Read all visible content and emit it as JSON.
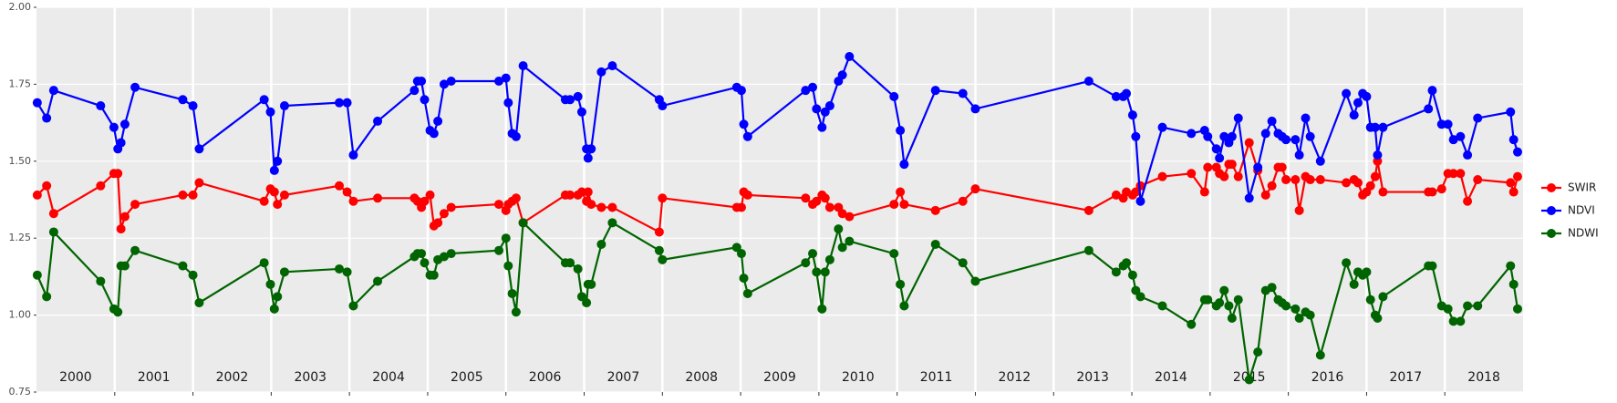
{
  "chart_data": {
    "type": "line",
    "x": [
      2000.01,
      2000.13,
      2000.22,
      2000.82,
      2000.99,
      2001.04,
      2001.08,
      2001.13,
      2001.26,
      2001.87,
      2002.0,
      2002.08,
      2002.91,
      2002.99,
      2003.04,
      2003.08,
      2003.17,
      2003.87,
      2003.97,
      2004.05,
      2004.36,
      2004.83,
      2004.87,
      2004.92,
      2004.96,
      2005.03,
      2005.08,
      2005.13,
      2005.21,
      2005.3,
      2005.91,
      2006.0,
      2006.03,
      2006.08,
      2006.13,
      2006.22,
      2006.76,
      2006.82,
      2006.92,
      2006.97,
      2007.03,
      2007.05,
      2007.09,
      2007.22,
      2007.36,
      2007.96,
      2008.0,
      2008.95,
      2009.01,
      2009.04,
      2009.09,
      2009.83,
      2009.92,
      2009.97,
      2010.04,
      2010.08,
      2010.14,
      2010.25,
      2010.3,
      2010.39,
      2010.96,
      2011.04,
      2011.09,
      2011.49,
      2011.84,
      2012.0,
      2013.45,
      2013.8,
      2013.89,
      2013.93,
      2014.01,
      2014.05,
      2014.11,
      2014.39,
      2014.76,
      2014.93,
      2014.97,
      2015.08,
      2015.12,
      2015.18,
      2015.24,
      2015.28,
      2015.36,
      2015.5,
      2015.61,
      2015.71,
      2015.79,
      2015.87,
      2015.92,
      2015.97,
      2016.09,
      2016.14,
      2016.22,
      2016.28,
      2016.41,
      2016.74,
      2016.84,
      2016.89,
      2016.95,
      2017.0,
      2017.05,
      2017.11,
      2017.14,
      2017.21,
      2017.79,
      2017.84,
      2017.96,
      2018.04,
      2018.11,
      2018.2,
      2018.29,
      2018.42,
      2018.84,
      2018.88,
      2018.93
    ],
    "series": [
      {
        "name": "SWIR",
        "color": "#ff0000",
        "values": [
          1.39,
          1.42,
          1.33,
          1.42,
          1.46,
          1.46,
          1.28,
          1.32,
          1.36,
          1.39,
          1.39,
          1.43,
          1.37,
          1.41,
          1.4,
          1.36,
          1.39,
          1.42,
          1.4,
          1.37,
          1.38,
          1.38,
          1.37,
          1.35,
          1.37,
          1.39,
          1.29,
          1.3,
          1.33,
          1.35,
          1.36,
          1.34,
          1.36,
          1.37,
          1.38,
          1.3,
          1.39,
          1.39,
          1.39,
          1.4,
          1.37,
          1.4,
          1.36,
          1.35,
          1.35,
          1.27,
          1.38,
          1.35,
          1.35,
          1.4,
          1.39,
          1.38,
          1.36,
          1.37,
          1.39,
          1.38,
          1.35,
          1.35,
          1.33,
          1.32,
          1.36,
          1.4,
          1.36,
          1.34,
          1.37,
          1.41,
          1.34,
          1.39,
          1.38,
          1.4,
          1.39,
          1.4,
          1.42,
          1.45,
          1.46,
          1.4,
          1.48,
          1.48,
          1.46,
          1.45,
          1.49,
          1.49,
          1.45,
          1.56,
          1.47,
          1.39,
          1.42,
          1.48,
          1.48,
          1.44,
          1.44,
          1.34,
          1.45,
          1.44,
          1.44,
          1.43,
          1.44,
          1.43,
          1.39,
          1.4,
          1.42,
          1.45,
          1.5,
          1.4,
          1.4,
          1.4,
          1.41,
          1.46,
          1.46,
          1.46,
          1.37,
          1.44,
          1.43,
          1.4,
          1.45
        ]
      },
      {
        "name": "NDVI",
        "color": "#0000ff",
        "values": [
          1.69,
          1.64,
          1.73,
          1.68,
          1.61,
          1.54,
          1.56,
          1.62,
          1.74,
          1.7,
          1.68,
          1.54,
          1.7,
          1.66,
          1.47,
          1.5,
          1.68,
          1.69,
          1.69,
          1.52,
          1.63,
          1.73,
          1.76,
          1.76,
          1.7,
          1.6,
          1.59,
          1.63,
          1.75,
          1.76,
          1.76,
          1.77,
          1.69,
          1.59,
          1.58,
          1.81,
          1.7,
          1.7,
          1.71,
          1.66,
          1.54,
          1.51,
          1.54,
          1.79,
          1.81,
          1.7,
          1.68,
          1.74,
          1.73,
          1.62,
          1.58,
          1.73,
          1.74,
          1.67,
          1.61,
          1.66,
          1.68,
          1.76,
          1.78,
          1.84,
          1.71,
          1.6,
          1.49,
          1.73,
          1.72,
          1.67,
          1.76,
          1.71,
          1.71,
          1.72,
          1.65,
          1.58,
          1.37,
          1.61,
          1.59,
          1.6,
          1.58,
          1.54,
          1.51,
          1.58,
          1.56,
          1.58,
          1.64,
          1.38,
          1.48,
          1.59,
          1.63,
          1.59,
          1.58,
          1.57,
          1.57,
          1.52,
          1.64,
          1.58,
          1.5,
          1.72,
          1.65,
          1.69,
          1.72,
          1.71,
          1.61,
          1.61,
          1.52,
          1.61,
          1.67,
          1.73,
          1.62,
          1.62,
          1.57,
          1.58,
          1.52,
          1.64,
          1.66,
          1.57,
          1.53
        ]
      },
      {
        "name": "NDWI",
        "color": "#006400",
        "values": [
          1.13,
          1.06,
          1.27,
          1.11,
          1.02,
          1.01,
          1.16,
          1.16,
          1.21,
          1.16,
          1.13,
          1.04,
          1.17,
          1.1,
          1.02,
          1.06,
          1.14,
          1.15,
          1.14,
          1.03,
          1.11,
          1.19,
          1.2,
          1.2,
          1.17,
          1.13,
          1.13,
          1.18,
          1.19,
          1.2,
          1.21,
          1.25,
          1.16,
          1.07,
          1.01,
          1.3,
          1.17,
          1.17,
          1.15,
          1.06,
          1.04,
          1.1,
          1.1,
          1.23,
          1.3,
          1.21,
          1.18,
          1.22,
          1.2,
          1.12,
          1.07,
          1.17,
          1.2,
          1.14,
          1.02,
          1.14,
          1.18,
          1.28,
          1.22,
          1.24,
          1.2,
          1.1,
          1.03,
          1.23,
          1.17,
          1.11,
          1.21,
          1.14,
          1.16,
          1.17,
          1.13,
          1.08,
          1.06,
          1.03,
          0.97,
          1.05,
          1.05,
          1.03,
          1.04,
          1.08,
          1.03,
          0.99,
          1.05,
          0.79,
          0.88,
          1.08,
          1.09,
          1.05,
          1.04,
          1.03,
          1.02,
          0.99,
          1.01,
          1.0,
          0.87,
          1.17,
          1.1,
          1.14,
          1.13,
          1.14,
          1.05,
          1.0,
          0.99,
          1.06,
          1.16,
          1.16,
          1.03,
          1.02,
          0.98,
          0.98,
          1.03,
          1.03,
          1.16,
          1.1,
          1.02
        ]
      }
    ],
    "xlim": [
      2000,
      2019
    ],
    "ylim": [
      0.75,
      2.0
    ],
    "yticks": [
      {
        "value": 0.75,
        "label": "0.75"
      },
      {
        "value": 1.0,
        "label": "1.00"
      },
      {
        "value": 1.25,
        "label": "1.25"
      },
      {
        "value": 1.5,
        "label": "1.50"
      },
      {
        "value": 1.75,
        "label": "1.75"
      },
      {
        "value": 2.0,
        "label": "2.00"
      }
    ],
    "xgrid": [
      2001,
      2002,
      2003,
      2004,
      2005,
      2006,
      2007,
      2008,
      2009,
      2010,
      2011,
      2012,
      2013,
      2014,
      2015,
      2016,
      2017,
      2018
    ],
    "year_labels": [
      {
        "value": 2000.5,
        "label": "2000"
      },
      {
        "value": 2001.5,
        "label": "2001"
      },
      {
        "value": 2002.5,
        "label": "2002"
      },
      {
        "value": 2003.5,
        "label": "2003"
      },
      {
        "value": 2004.5,
        "label": "2004"
      },
      {
        "value": 2005.5,
        "label": "2005"
      },
      {
        "value": 2006.5,
        "label": "2006"
      },
      {
        "value": 2007.5,
        "label": "2007"
      },
      {
        "value": 2008.5,
        "label": "2008"
      },
      {
        "value": 2009.5,
        "label": "2009"
      },
      {
        "value": 2010.5,
        "label": "2010"
      },
      {
        "value": 2011.5,
        "label": "2011"
      },
      {
        "value": 2012.5,
        "label": "2012"
      },
      {
        "value": 2013.5,
        "label": "2013"
      },
      {
        "value": 2014.5,
        "label": "2014"
      },
      {
        "value": 2015.5,
        "label": "2015"
      },
      {
        "value": 2016.5,
        "label": "2016"
      },
      {
        "value": 2017.5,
        "label": "2017"
      },
      {
        "value": 2018.5,
        "label": "2018"
      }
    ],
    "grid": true,
    "legend": "right"
  }
}
